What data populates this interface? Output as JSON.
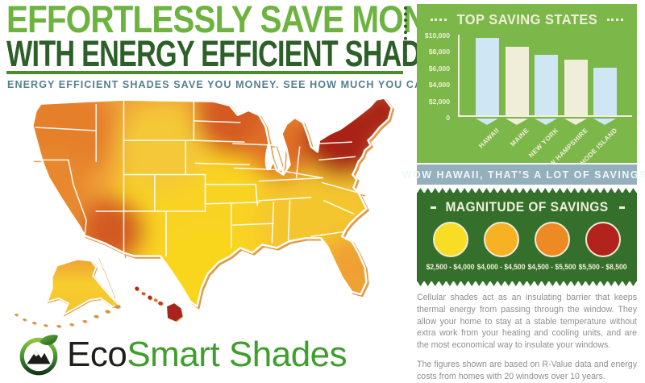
{
  "header": {
    "title_line1": "EFFORTLESSLY SAVE MONEY",
    "title_line2": "WITH ENERGY EFFICIENT SHADES",
    "subtitle": "ENERGY EFFICIENT SHADES SAVE YOU MONEY. SEE HOW MUCH YOU CAN SAVE!",
    "colors": {
      "line1": "#6cb33f",
      "line2": "#2d5f28",
      "rule": "#4c8c2e",
      "subtitle": "#54808f"
    }
  },
  "chart_data": {
    "type": "bar",
    "title": "TOP SAVING STATES",
    "categories": [
      "HAWAII",
      "MAINE",
      "NEW YORK",
      "NEW HAMPSHIRE",
      "RHODE ISLAND"
    ],
    "values": [
      9400,
      8300,
      7400,
      6800,
      5800
    ],
    "y_ticks": [
      "$10,000",
      "$8,000",
      "$6,000",
      "$4,000",
      "$2,000",
      "0"
    ],
    "ylim": [
      0,
      10000
    ],
    "xlabel": "",
    "ylabel": "",
    "grid": false,
    "legend_position": "none",
    "bar_colors": [
      "#cfe6f4",
      "#f0edd8",
      "#cfe6f4",
      "#f0edd8",
      "#cfe6f4"
    ],
    "panel_bg": "#7cb74a",
    "axis_color": "#f2eeda"
  },
  "banner": {
    "text": "WOW HAWAII, THAT'S A LOT OF SAVINGS!",
    "bg": "#94b0bd"
  },
  "magnitude": {
    "title": "MAGNITUDE OF SAVINGS",
    "bg": "#34702c",
    "items": [
      {
        "range": "$2,500 - $4,000",
        "color": "#f8dd25"
      },
      {
        "range": "$4,000 - $4,500",
        "color": "#f6b223"
      },
      {
        "range": "$4,500 - $5,500",
        "color": "#ee8a23"
      },
      {
        "range": "$5,500 - $8,500",
        "color": "#b2231d"
      }
    ]
  },
  "body_text": {
    "para1": "Cellular shades act as an insulating barrier that keeps thermal energy from passing through the window. They allow your home to stay at a stable temperature without extra work from your heating and cooling units, and are the most economical way to insulate your windows.",
    "para2": "The figures shown are based on R-Value data and energy costs from homes with 20 windows over 10 years."
  },
  "map": {
    "label": "united-states-savings-heatmap",
    "scale_low_color": "#f9d320",
    "scale_high_color": "#a82019"
  },
  "logo": {
    "text_dark": "Eco",
    "text_green": "Smart Shades"
  }
}
